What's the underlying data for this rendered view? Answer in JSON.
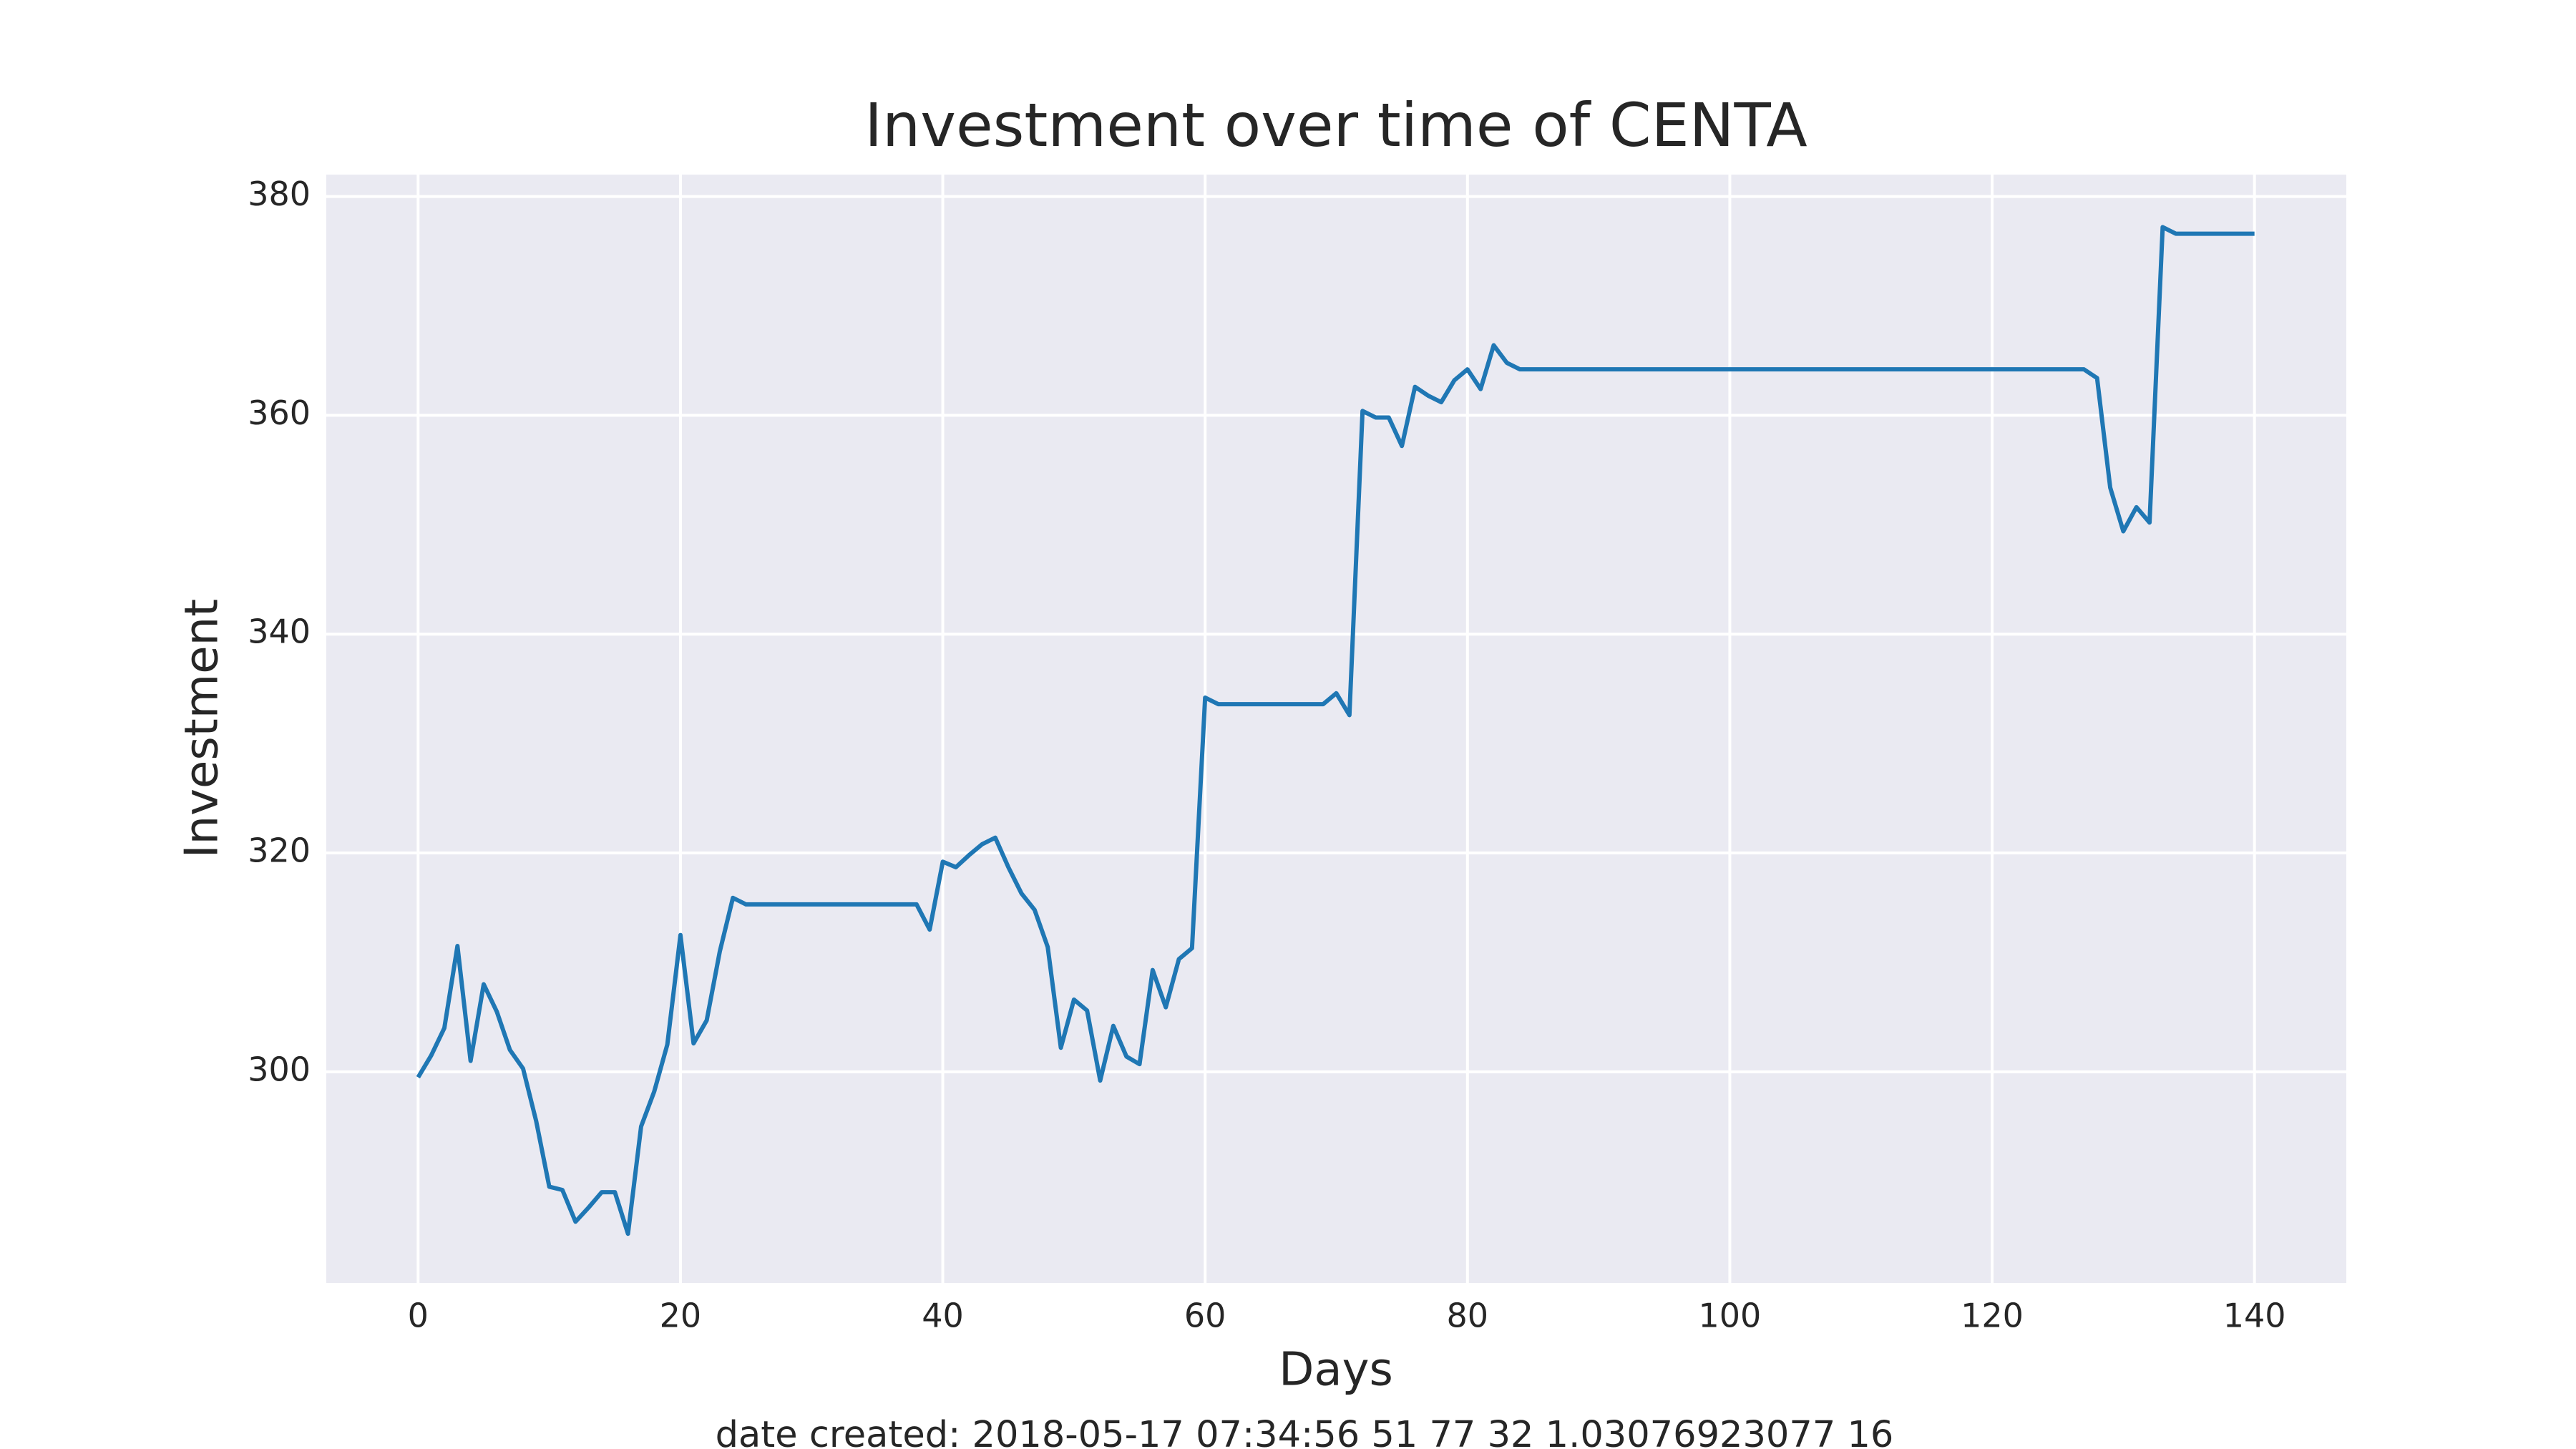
{
  "chart_data": {
    "type": "line",
    "title": "Investment over time of CENTA",
    "xlabel": "Days",
    "ylabel": "Investment",
    "footer": "date created: 2018-05-17 07:34:56 51 77 32 1.03076923077 16",
    "x": [
      0,
      1,
      2,
      3,
      4,
      5,
      6,
      7,
      8,
      9,
      10,
      11,
      12,
      13,
      14,
      15,
      16,
      17,
      18,
      19,
      20,
      21,
      22,
      23,
      24,
      25,
      26,
      27,
      28,
      29,
      30,
      31,
      32,
      33,
      34,
      35,
      36,
      37,
      38,
      39,
      40,
      41,
      42,
      43,
      44,
      45,
      46,
      47,
      48,
      49,
      50,
      51,
      52,
      53,
      54,
      55,
      56,
      57,
      58,
      59,
      60,
      61,
      62,
      63,
      64,
      65,
      66,
      67,
      68,
      69,
      70,
      71,
      72,
      73,
      74,
      75,
      76,
      77,
      78,
      79,
      80,
      81,
      82,
      83,
      84,
      85,
      86,
      87,
      88,
      89,
      90,
      91,
      92,
      93,
      94,
      95,
      96,
      97,
      98,
      99,
      100,
      101,
      102,
      103,
      104,
      105,
      106,
      107,
      108,
      109,
      110,
      111,
      112,
      113,
      114,
      115,
      116,
      117,
      118,
      119,
      120,
      121,
      122,
      123,
      124,
      125,
      126,
      127,
      128,
      129,
      130,
      131,
      132,
      133,
      134,
      135,
      136,
      137,
      138,
      139,
      140
    ],
    "series": [
      {
        "color": "#1f77b4",
        "values": [
          299.5,
          301.5,
          304,
          311.5,
          301,
          308,
          305.5,
          302,
          300.3,
          295.5,
          289.5,
          289.2,
          286.3,
          287.6,
          289,
          289,
          285.2,
          295,
          298.2,
          302.5,
          312.5,
          302.6,
          304.7,
          311,
          315.9,
          315.3,
          315.3,
          315.3,
          315.3,
          315.3,
          315.3,
          315.3,
          315.3,
          315.3,
          315.3,
          315.3,
          315.3,
          315.3,
          315.3,
          313,
          319.2,
          318.7,
          319.8,
          320.8,
          321.4,
          318.7,
          316.3,
          314.8,
          311.4,
          302.2,
          306.6,
          305.6,
          299.2,
          304.2,
          301.4,
          300.7,
          309.3,
          305.9,
          310.3,
          311.3,
          334.2,
          333.6,
          333.6,
          333.6,
          333.6,
          333.6,
          333.6,
          333.6,
          333.6,
          333.6,
          334.6,
          332.6,
          360.4,
          359.8,
          359.8,
          357.2,
          362.6,
          361.8,
          361.2,
          363.2,
          364.2,
          362.4,
          366.4,
          364.8,
          364.2,
          364.2,
          364.2,
          364.2,
          364.2,
          364.2,
          364.2,
          364.2,
          364.2,
          364.2,
          364.2,
          364.2,
          364.2,
          364.2,
          364.2,
          364.2,
          364.2,
          364.2,
          364.2,
          364.2,
          364.2,
          364.2,
          364.2,
          364.2,
          364.2,
          364.2,
          364.2,
          364.2,
          364.2,
          364.2,
          364.2,
          364.2,
          364.2,
          364.2,
          364.2,
          364.2,
          364.2,
          364.2,
          364.2,
          364.2,
          364.2,
          364.2,
          364.2,
          364.2,
          363.4,
          353.4,
          349.4,
          351.6,
          350.2,
          377.2,
          376.6,
          376.6,
          376.6,
          376.6,
          376.6,
          376.6,
          376.6
        ]
      }
    ],
    "xlim": [
      -7,
      147
    ],
    "xticks": [
      0,
      20,
      40,
      60,
      80,
      100,
      120,
      140
    ],
    "ylim": [
      280.7,
      382
    ],
    "yticks": [
      300,
      320,
      340,
      360,
      380
    ],
    "grid": true
  }
}
